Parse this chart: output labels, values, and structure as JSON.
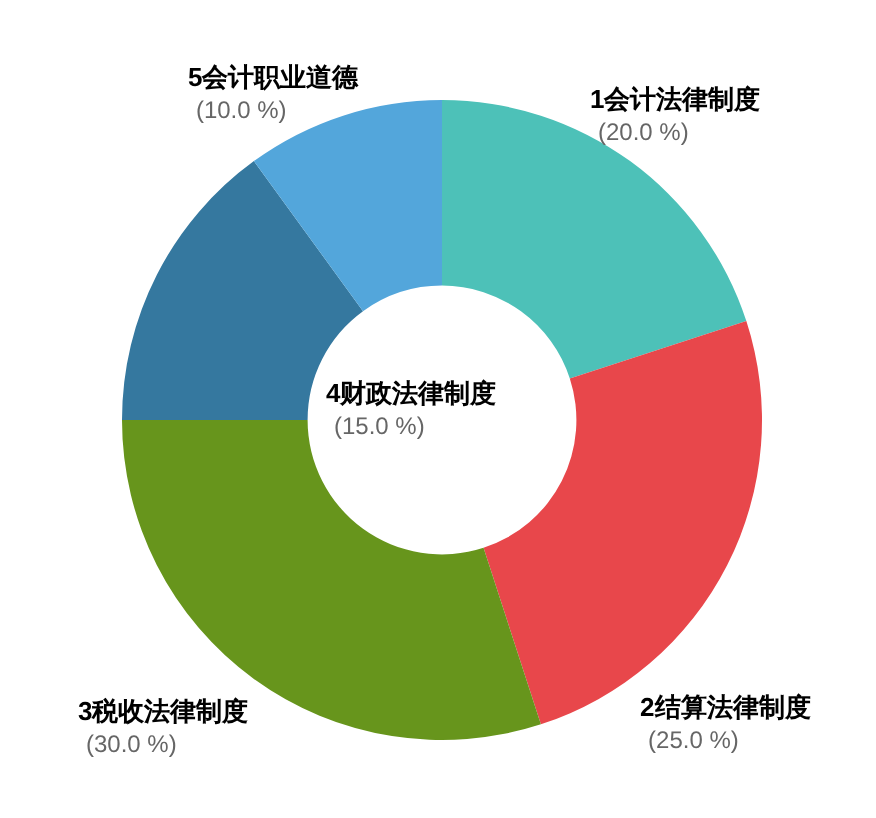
{
  "chart_data": {
    "type": "donut",
    "categories": [
      "1会计法律制度",
      "2结算法律制度",
      "3税收法律制度",
      "4财政法律制度",
      "5会计职业道德"
    ],
    "values": [
      20,
      25,
      30,
      15,
      10
    ],
    "colors": [
      "#4dc1b8",
      "#e8474b",
      "#67951c",
      "#35789f",
      "#53a6db"
    ],
    "value_labels": [
      "(20.0 %)",
      "(25.0 %)",
      "(30.0 %)",
      "(15.0 %)",
      "(10.0 %)"
    ]
  }
}
